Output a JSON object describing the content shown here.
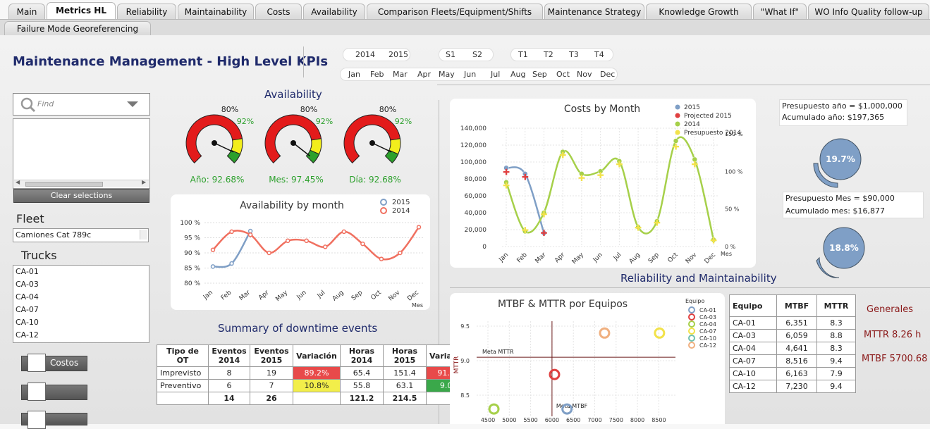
{
  "tabs": [
    "Main",
    "Metrics HL",
    "Reliability",
    "Maintainability",
    "Costs",
    "Availability",
    "Comparison Fleets/Equipment/Shifts",
    "Maintenance Strategy",
    "Knowledge Growth",
    "\"What If\"",
    "WO Info Quality follow-up"
  ],
  "tab2": "Failure Mode Georeferencing",
  "page_title": "Maintenance Management - High Level KPIs",
  "filters": {
    "years": [
      "2014",
      "2015"
    ],
    "semesters": [
      "S1",
      "S2"
    ],
    "quarters": [
      "T1",
      "T2",
      "T3",
      "T4"
    ],
    "months": [
      "Jan",
      "Feb",
      "Mar",
      "Apr",
      "May",
      "Jun",
      "Jul",
      "Aug",
      "Sep",
      "Oct",
      "Nov",
      "Dec"
    ]
  },
  "search": {
    "placeholder": "Find",
    "clear_label": "Clear selections"
  },
  "fleet": {
    "label": "Fleet",
    "value": "Camiones Cat 789c"
  },
  "trucks": {
    "label": "Trucks",
    "items": [
      "CA-01",
      "CA-03",
      "CA-04",
      "CA-07",
      "CA-10",
      "CA-12"
    ]
  },
  "buttons": {
    "costos": "Costos"
  },
  "availability": {
    "title": "Availability",
    "gauges": [
      {
        "value": 0.9268,
        "threshold_label": "80%",
        "target_label": "92%",
        "caption": "Año: 92.68%"
      },
      {
        "value": 0.9745,
        "threshold_label": "80%",
        "target_label": "92%",
        "caption": "Mes: 97.45%"
      },
      {
        "value": 0.9268,
        "threshold_label": "80%",
        "target_label": "92%",
        "caption": "Día: 92.68%"
      }
    ],
    "colors": {
      "red": "#e31b1b",
      "yellow": "#f2ee1c",
      "green": "#2ca02c",
      "caption": "#2ca02c"
    }
  },
  "downtime": {
    "title": "Summary of downtime events",
    "headers": [
      "Tipo de OT",
      "Eventos 2014",
      "Eventos 2015",
      "Variación",
      "Horas 2014",
      "Horas 2015",
      "Variación"
    ],
    "rows": [
      [
        "Imprevisto",
        "8",
        "19",
        "89.2%",
        "65.4",
        "151.4",
        "91.0%"
      ],
      [
        "Preventivo",
        "6",
        "7",
        "10.8%",
        "55.8",
        "63.1",
        "9.0%"
      ],
      [
        "",
        "14",
        "26",
        "",
        "121.2",
        "214.5",
        ""
      ]
    ]
  },
  "budget": {
    "year_label": "Presupuesto año    = $1,000,000",
    "year_accum": "Acumulado año:  $197,365",
    "year_pct": "19.7%",
    "month_label": "Presupuesto Mes    = $90,000",
    "month_accum": "Acumulado mes:  $16,877",
    "month_pct": "18.8%"
  },
  "reliability_title": "Reliability and Maintainability",
  "mtbf_table": {
    "headers": [
      "Equipo",
      "MTBF",
      "MTTR"
    ],
    "rows": [
      [
        "CA-01",
        "6,351",
        "8.3"
      ],
      [
        "CA-03",
        "6,059",
        "8.8"
      ],
      [
        "CA-04",
        "4,641",
        "8.3"
      ],
      [
        "CA-07",
        "8,516",
        "9.4"
      ],
      [
        "CA-10",
        "6,163",
        "7.9"
      ],
      [
        "CA-12",
        "7,230",
        "9.4"
      ]
    ]
  },
  "generales": {
    "title": "Generales",
    "mttr": "MTTR 8.26 h",
    "mtbf": "MTBF 5700.68"
  },
  "chart_data": [
    {
      "type": "line",
      "title": "Availability by month",
      "xlabel": "Mes",
      "categories": [
        "Jan",
        "Feb",
        "Mar",
        "Apr",
        "May",
        "Jun",
        "Jul",
        "Aug",
        "Sep",
        "Oct",
        "Nov",
        "Dec"
      ],
      "ylim": [
        80,
        100
      ],
      "yticks": [
        "80 %",
        "85 %",
        "90 %",
        "95 %",
        "100 %"
      ],
      "series": [
        {
          "name": "2015",
          "color": "#7f9fc6",
          "values": [
            85.5,
            86.5,
            97.2,
            null,
            null,
            null,
            null,
            null,
            null,
            null,
            null,
            null
          ]
        },
        {
          "name": "2014",
          "color": "#f07060",
          "values": [
            91,
            97,
            96,
            90,
            94,
            94,
            92,
            97,
            93,
            88,
            90,
            98.5
          ]
        }
      ],
      "legend": "top-right"
    },
    {
      "type": "line",
      "title": "Costs by Month",
      "xlabel": "Mes",
      "categories": [
        "Jan",
        "Feb",
        "Mar",
        "Apr",
        "May",
        "Jun",
        "Jul",
        "Aug",
        "Sep",
        "Oct",
        "Nov",
        "Dec"
      ],
      "ylim": [
        0,
        140000
      ],
      "yticks": [
        "0",
        "20,000",
        "40,000",
        "60,000",
        "80,000",
        "100,000",
        "120,000",
        "140,000"
      ],
      "y2ticks": [
        "0 %",
        "50 %",
        "100 %",
        "150 %"
      ],
      "series": [
        {
          "name": "2015",
          "color": "#7f9fc6",
          "values": [
            93000,
            86000,
            16000,
            null,
            null,
            null,
            null,
            null,
            null,
            null,
            null,
            null
          ]
        },
        {
          "name": "Projected 2015",
          "color": "#e04040",
          "values": [
            88000,
            82000,
            16000,
            null,
            null,
            null,
            null,
            null,
            null,
            null,
            null,
            null
          ]
        },
        {
          "name": "2014",
          "color": "#a6d04a",
          "values": [
            76000,
            18000,
            40000,
            112000,
            86000,
            89000,
            101000,
            23000,
            30000,
            125000,
            103000,
            8000
          ]
        },
        {
          "name": "Presupuesto 2014",
          "color": "#f2e24a",
          "values": [
            72000,
            19000,
            38000,
            108000,
            81000,
            84000,
            97000,
            22000,
            28000,
            118000,
            97000,
            7000
          ]
        }
      ],
      "legend": "top-right"
    },
    {
      "type": "scatter",
      "title": "MTBF & MTTR por Equipos",
      "ylabel": "MTTR",
      "legend_title": "Equipo",
      "xlim": [
        4400,
        8800
      ],
      "ylim": [
        7.9,
        9.6
      ],
      "xticks": [
        "4500",
        "5000",
        "5500",
        "6000",
        "6500",
        "7000",
        "7500",
        "8000",
        "8500"
      ],
      "yticks": [
        "8.0",
        "8.5",
        "9.0",
        "9.5"
      ],
      "ref_lines": {
        "mttr_label": "Meta MTTR",
        "mttr": 9.05,
        "mtbf_label": "Meta MTBF",
        "mtbf": 6000
      },
      "series": [
        {
          "name": "CA-01",
          "color": "#7f9fc6",
          "x": 6351,
          "y": 8.3
        },
        {
          "name": "CA-03",
          "color": "#e04040",
          "x": 6059,
          "y": 8.8
        },
        {
          "name": "CA-04",
          "color": "#a6d04a",
          "x": 4641,
          "y": 8.3
        },
        {
          "name": "CA-07",
          "color": "#f2e24a",
          "x": 8516,
          "y": 9.4
        },
        {
          "name": "CA-10",
          "color": "#70c0b0",
          "x": 6163,
          "y": 7.9
        },
        {
          "name": "CA-12",
          "color": "#f0b080",
          "x": 7230,
          "y": 9.4
        }
      ]
    }
  ]
}
